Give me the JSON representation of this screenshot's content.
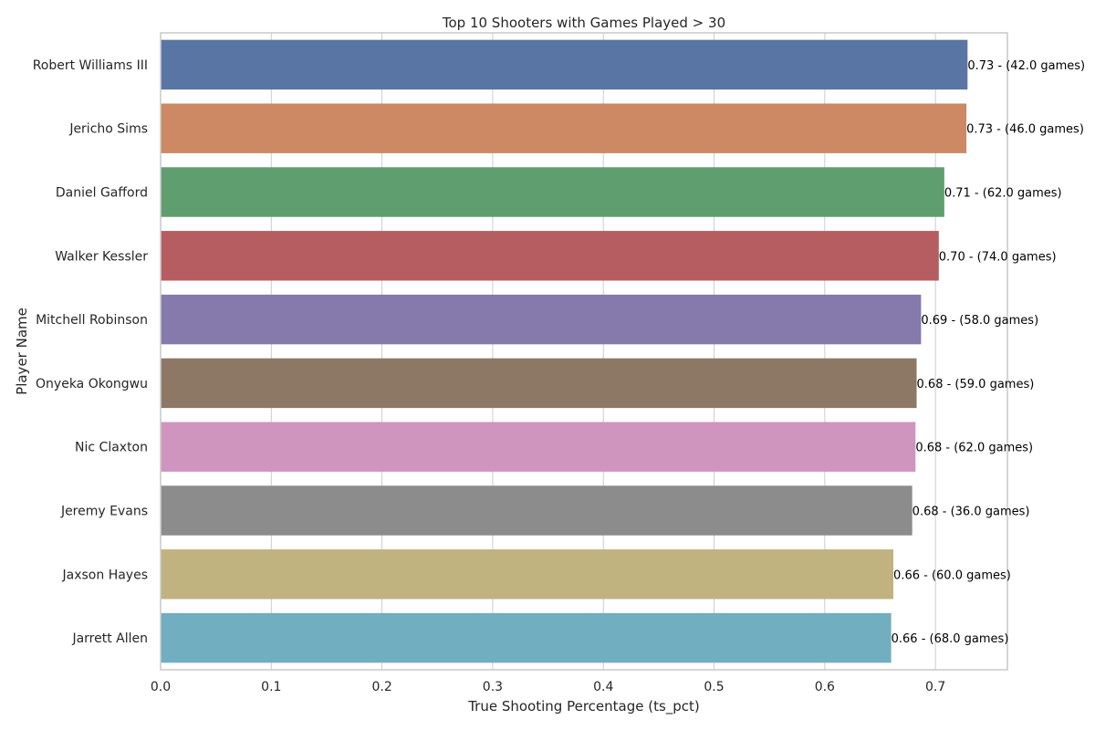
{
  "chart_data": {
    "type": "bar",
    "orientation": "horizontal",
    "title": "Top 10 Shooters with Games Played > 30",
    "xlabel": "True Shooting Percentage (ts_pct)",
    "ylabel": "Player Name",
    "xlim": [
      0,
      0.765
    ],
    "xticks": [
      "0.0",
      "0.1",
      "0.2",
      "0.3",
      "0.4",
      "0.5",
      "0.6",
      "0.7"
    ],
    "grid": true,
    "categories": [
      "Robert Williams III",
      "Jericho Sims",
      "Daniel Gafford",
      "Walker Kessler",
      "Mitchell Robinson",
      "Onyeka Okongwu",
      "Nic Claxton",
      "Jeremy Evans",
      "Jaxson Hayes",
      "Jarrett Allen"
    ],
    "values": [
      0.729,
      0.728,
      0.708,
      0.703,
      0.687,
      0.683,
      0.682,
      0.679,
      0.662,
      0.66
    ],
    "games": [
      42.0,
      46.0,
      62.0,
      74.0,
      58.0,
      59.0,
      62.0,
      36.0,
      60.0,
      68.0
    ],
    "data_labels": [
      "0.73 - (42.0 games)",
      "0.73 - (46.0 games)",
      "0.71 - (62.0 games)",
      "0.70 - (74.0 games)",
      "0.69 - (58.0 games)",
      "0.68 - (59.0 games)",
      "0.68 - (62.0 games)",
      "0.68 - (36.0 games)",
      "0.66 - (60.0 games)",
      "0.66 - (68.0 games)"
    ],
    "colors": [
      "#5975a4",
      "#cc8963",
      "#5f9e6e",
      "#b55d60",
      "#857aab",
      "#8d7866",
      "#d095bf",
      "#8c8c8c",
      "#c1b37f",
      "#71aec0"
    ]
  }
}
